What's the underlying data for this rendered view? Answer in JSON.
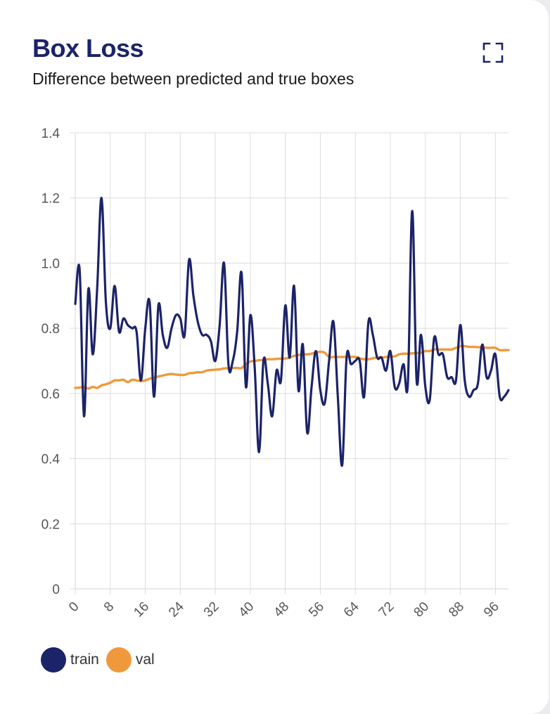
{
  "header": {
    "title": "Box Loss",
    "subtitle": "Difference between predicted and true boxes"
  },
  "colors": {
    "train": "#1b2369",
    "val": "#f0993c",
    "grid": "#dcdcdc",
    "title": "#1b2369"
  },
  "icons": {
    "expand": "expand-icon"
  },
  "chart_data": {
    "type": "line",
    "xlabel": "",
    "ylabel": "",
    "ylim": [
      0,
      1.4
    ],
    "xlim": [
      0,
      99
    ],
    "y_ticks": [
      "0",
      "0.2",
      "0.4",
      "0.6",
      "0.8",
      "1.0",
      "1.2",
      "1.4"
    ],
    "x_ticks": [
      "0",
      "8",
      "16",
      "24",
      "32",
      "40",
      "48",
      "56",
      "64",
      "72",
      "80",
      "88",
      "96"
    ],
    "grid": true,
    "legend": "bottom-left",
    "series": [
      {
        "name": "train",
        "x": [
          0,
          1,
          2,
          3,
          4,
          5,
          6,
          7,
          8,
          9,
          10,
          11,
          12,
          13,
          14,
          15,
          16,
          17,
          18,
          19,
          20,
          21,
          22,
          23,
          24,
          25,
          26,
          27,
          28,
          29,
          30,
          31,
          32,
          33,
          34,
          35,
          36,
          37,
          38,
          39,
          40,
          41,
          42,
          43,
          44,
          45,
          46,
          47,
          48,
          49,
          50,
          51,
          52,
          53,
          54,
          55,
          56,
          57,
          58,
          59,
          60,
          61,
          62,
          63,
          64,
          65,
          66,
          67,
          68,
          69,
          70,
          71,
          72,
          73,
          74,
          75,
          76,
          77,
          78,
          79,
          80,
          81,
          82,
          83,
          84,
          85,
          86,
          87,
          88,
          89,
          90,
          91,
          92,
          93,
          94,
          95,
          96,
          97,
          98,
          99
        ],
        "values": [
          0.875,
          0.98,
          0.53,
          0.92,
          0.72,
          0.92,
          1.2,
          0.88,
          0.8,
          0.93,
          0.79,
          0.83,
          0.81,
          0.8,
          0.79,
          0.64,
          0.8,
          0.88,
          0.59,
          0.87,
          0.78,
          0.74,
          0.8,
          0.84,
          0.83,
          0.78,
          1.01,
          0.9,
          0.82,
          0.78,
          0.78,
          0.76,
          0.7,
          0.81,
          1.0,
          0.69,
          0.7,
          0.79,
          0.97,
          0.62,
          0.84,
          0.68,
          0.42,
          0.7,
          0.63,
          0.53,
          0.67,
          0.64,
          0.87,
          0.71,
          0.93,
          0.61,
          0.75,
          0.48,
          0.62,
          0.73,
          0.61,
          0.57,
          0.7,
          0.82,
          0.59,
          0.38,
          0.71,
          0.69,
          0.7,
          0.7,
          0.59,
          0.82,
          0.78,
          0.71,
          0.71,
          0.67,
          0.73,
          0.62,
          0.63,
          0.69,
          0.63,
          1.16,
          0.64,
          0.78,
          0.62,
          0.58,
          0.77,
          0.72,
          0.72,
          0.65,
          0.65,
          0.64,
          0.81,
          0.64,
          0.59,
          0.61,
          0.63,
          0.75,
          0.65,
          0.67,
          0.72,
          0.59,
          0.59,
          0.61
        ]
      },
      {
        "name": "val",
        "x": [
          0,
          1,
          2,
          3,
          4,
          5,
          6,
          7,
          8,
          9,
          10,
          11,
          12,
          13,
          14,
          15,
          16,
          17,
          18,
          19,
          20,
          21,
          22,
          23,
          24,
          25,
          26,
          27,
          28,
          29,
          30,
          31,
          32,
          33,
          34,
          35,
          36,
          37,
          38,
          39,
          40,
          41,
          42,
          43,
          44,
          45,
          46,
          47,
          48,
          49,
          50,
          51,
          52,
          53,
          54,
          55,
          56,
          57,
          58,
          59,
          60,
          61,
          62,
          63,
          64,
          65,
          66,
          67,
          68,
          69,
          70,
          71,
          72,
          73,
          74,
          75,
          76,
          77,
          78,
          79,
          80,
          81,
          82,
          83,
          84,
          85,
          86,
          87,
          88,
          89,
          90,
          91,
          92,
          93,
          94,
          95,
          96,
          97,
          98,
          99
        ],
        "values": [
          0.617,
          0.618,
          0.62,
          0.615,
          0.62,
          0.617,
          0.625,
          0.628,
          0.633,
          0.64,
          0.64,
          0.642,
          0.635,
          0.642,
          0.64,
          0.638,
          0.64,
          0.645,
          0.648,
          0.652,
          0.655,
          0.658,
          0.66,
          0.658,
          0.657,
          0.657,
          0.662,
          0.663,
          0.665,
          0.665,
          0.67,
          0.672,
          0.673,
          0.674,
          0.677,
          0.677,
          0.678,
          0.678,
          0.678,
          0.69,
          0.698,
          0.7,
          0.702,
          0.703,
          0.705,
          0.705,
          0.706,
          0.707,
          0.707,
          0.71,
          0.715,
          0.718,
          0.72,
          0.72,
          0.722,
          0.726,
          0.728,
          0.725,
          0.712,
          0.712,
          0.712,
          0.712,
          0.712,
          0.712,
          0.712,
          0.708,
          0.705,
          0.705,
          0.708,
          0.71,
          0.71,
          0.712,
          0.713,
          0.714,
          0.72,
          0.722,
          0.722,
          0.723,
          0.724,
          0.725,
          0.73,
          0.73,
          0.735,
          0.735,
          0.735,
          0.735,
          0.735,
          0.74,
          0.745,
          0.745,
          0.743,
          0.743,
          0.742,
          0.742,
          0.74,
          0.74,
          0.74,
          0.733,
          0.733,
          0.733
        ]
      }
    ]
  }
}
